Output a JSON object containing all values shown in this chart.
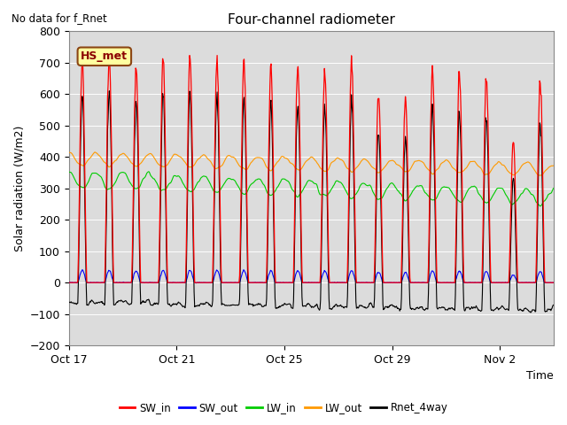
{
  "title": "Four-channel radiometer",
  "top_left_text": "No data for f_Rnet",
  "station_label": "HS_met",
  "xlabel": "Time",
  "ylabel": "Solar radiation (W/m2)",
  "ylim": [
    -200,
    800
  ],
  "yticks": [
    -200,
    -100,
    0,
    100,
    200,
    300,
    400,
    500,
    600,
    700,
    800
  ],
  "colors": {
    "SW_in": "#ff0000",
    "SW_out": "#0000ff",
    "LW_in": "#00cc00",
    "LW_out": "#ff9900",
    "Rnet_4way": "#000000"
  },
  "legend_labels": [
    "SW_in",
    "SW_out",
    "LW_in",
    "LW_out",
    "Rnet_4way"
  ],
  "xtick_labels": [
    "Oct 17",
    "Oct 21",
    "Oct 25",
    "Oct 29",
    "Nov 2"
  ],
  "xtick_positions": [
    0,
    4,
    8,
    12,
    16
  ],
  "n_days": 18,
  "figsize": [
    6.4,
    4.8
  ],
  "dpi": 100
}
